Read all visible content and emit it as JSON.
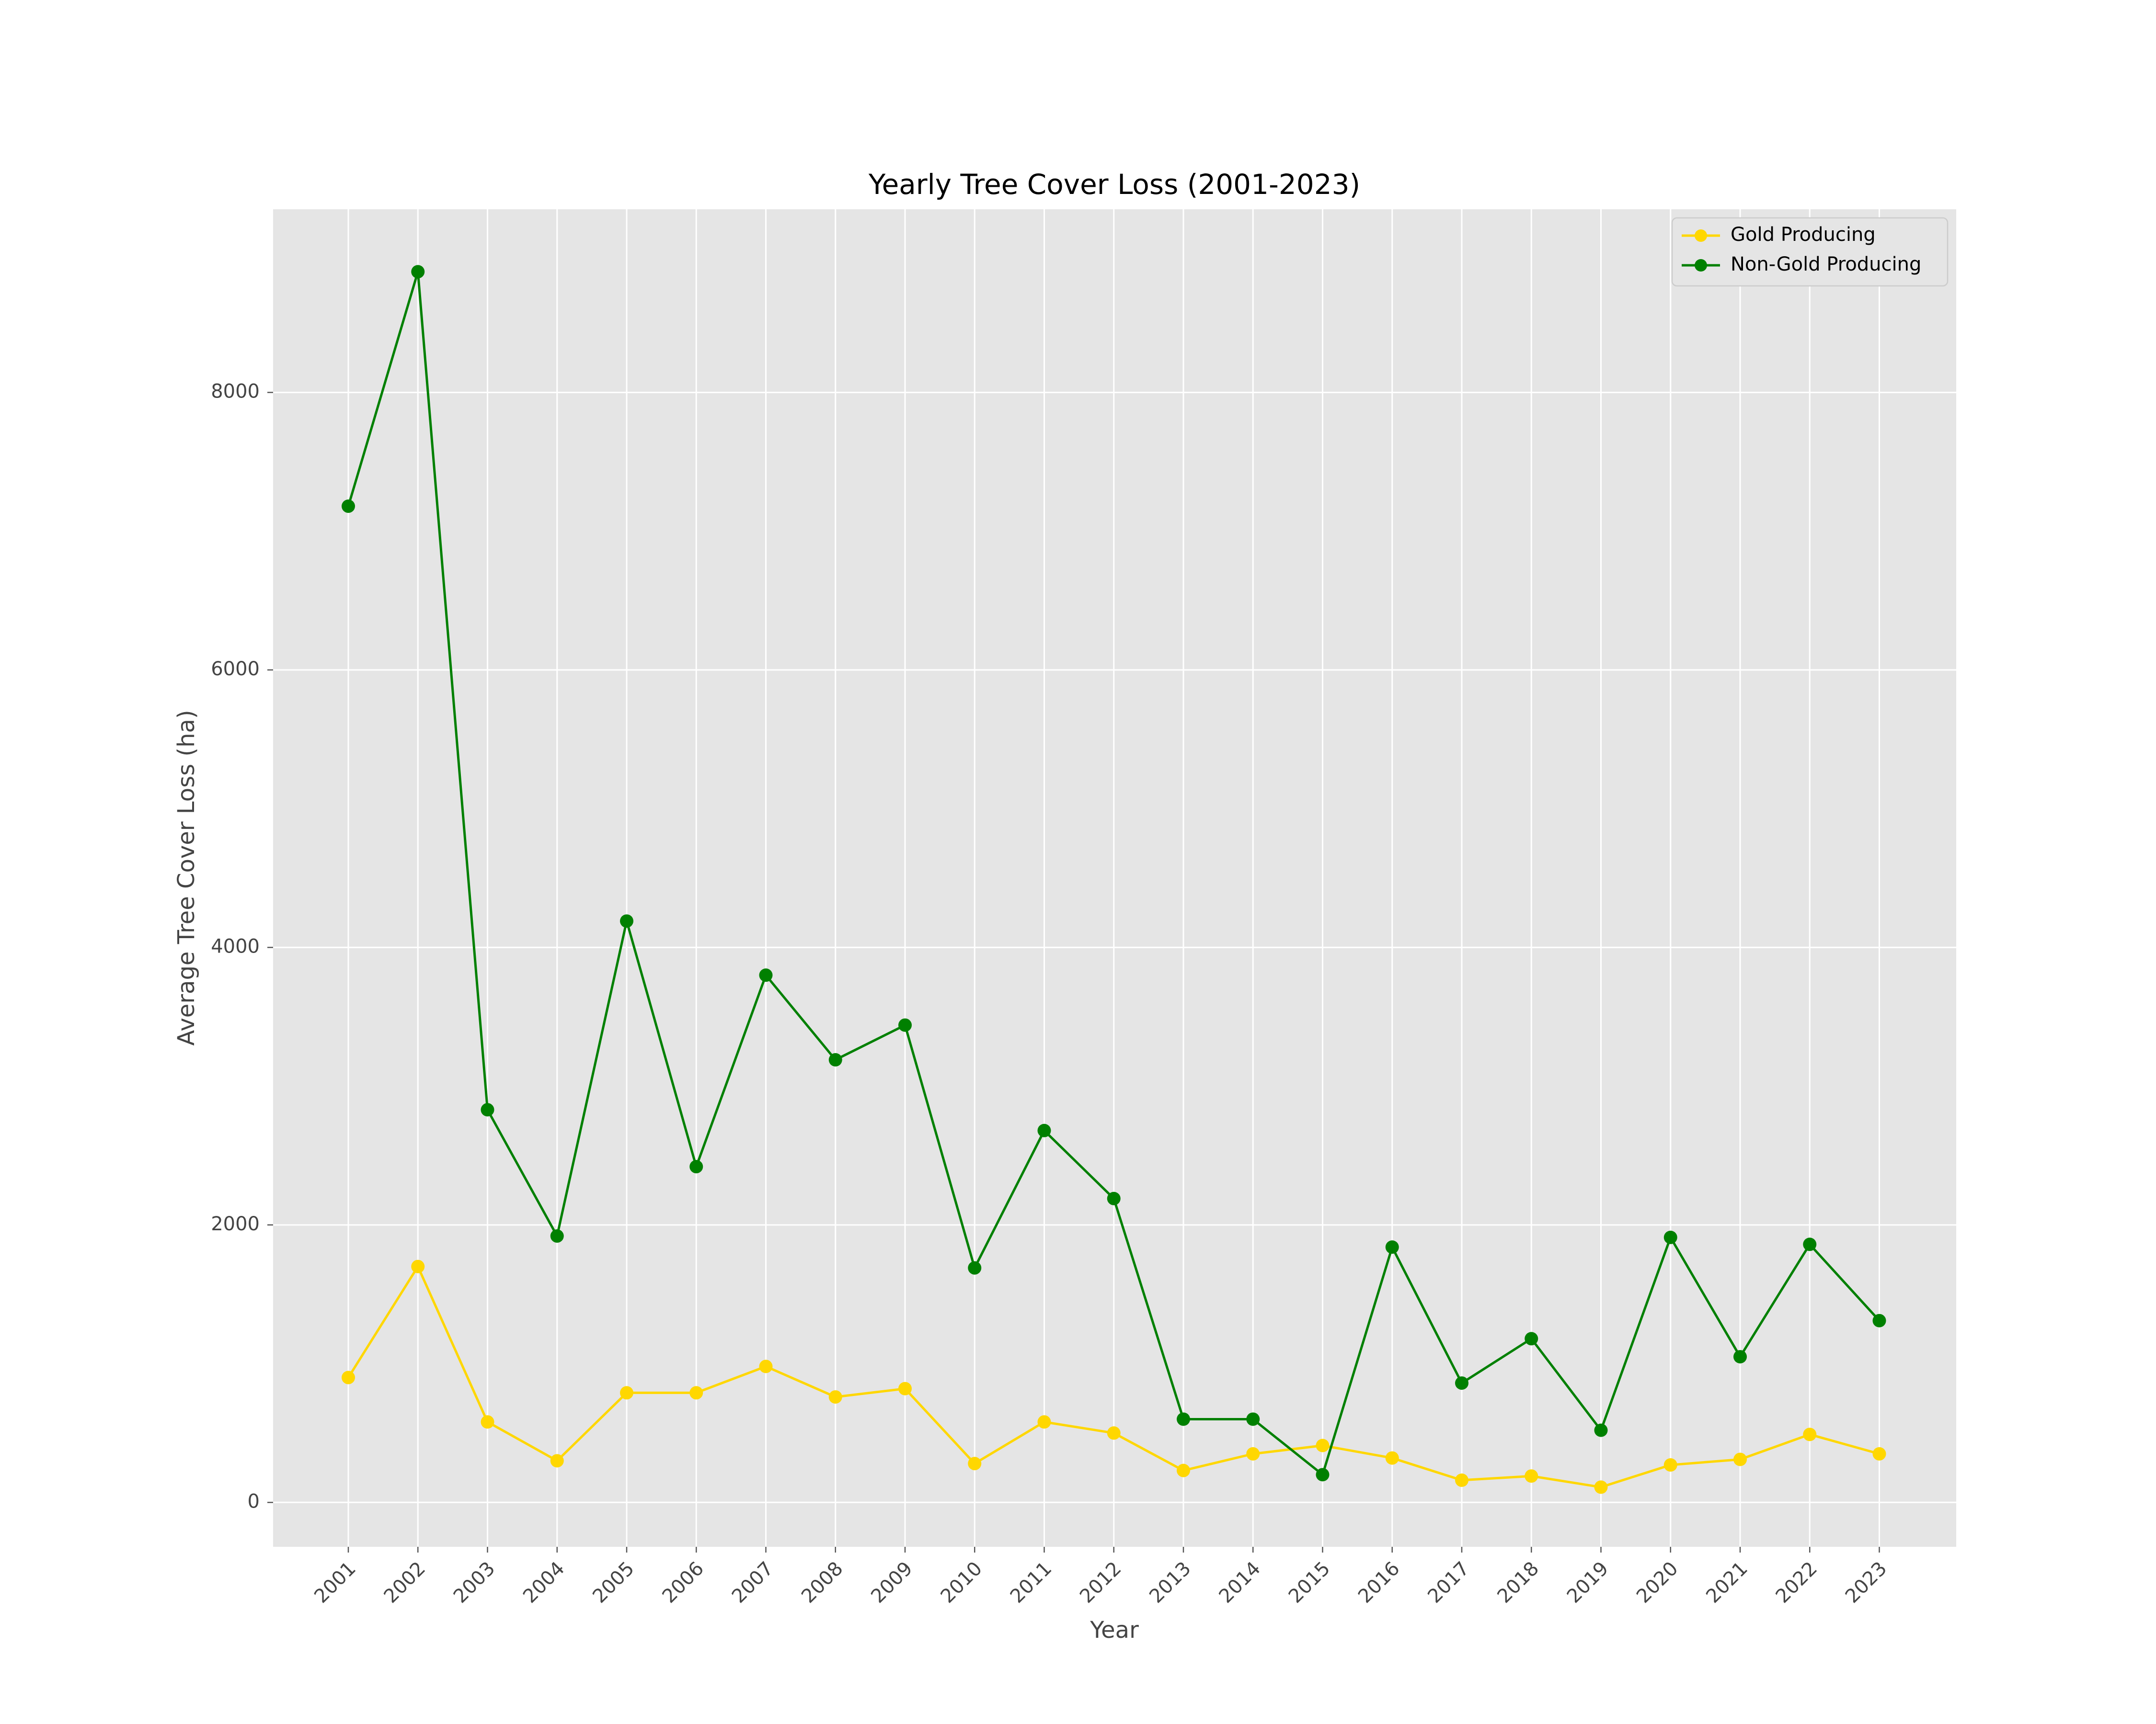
{
  "chart_data": {
    "type": "line",
    "title": "Yearly Tree Cover Loss (2001-2023)",
    "xlabel": "Year",
    "ylabel": "Average Tree Cover Loss (ha)",
    "categories": [
      "2001",
      "2002",
      "2003",
      "2004",
      "2005",
      "2006",
      "2007",
      "2008",
      "2009",
      "2010",
      "2011",
      "2012",
      "2013",
      "2014",
      "2015",
      "2016",
      "2017",
      "2018",
      "2019",
      "2020",
      "2021",
      "2022",
      "2023"
    ],
    "y_ticks": [
      "0",
      "2000",
      "4000",
      "6000",
      "8000"
    ],
    "y_tick_values": [
      0,
      2000,
      4000,
      6000,
      8000
    ],
    "ylim": [
      -320,
      9320
    ],
    "grid": true,
    "legend_position": "top-right",
    "series": [
      {
        "name": "Gold Producing",
        "color": "#FFD700",
        "values": [
          900,
          1700,
          580,
          300,
          790,
          790,
          980,
          760,
          820,
          280,
          580,
          500,
          230,
          350,
          410,
          320,
          160,
          190,
          110,
          270,
          310,
          490,
          350
        ]
      },
      {
        "name": "Non-Gold Producing",
        "color": "#008000",
        "values": [
          7180,
          8870,
          2830,
          1920,
          4190,
          2420,
          3800,
          3190,
          3440,
          1690,
          2680,
          2190,
          600,
          600,
          200,
          1840,
          860,
          1180,
          520,
          1910,
          1050,
          1860,
          1310
        ]
      }
    ]
  }
}
